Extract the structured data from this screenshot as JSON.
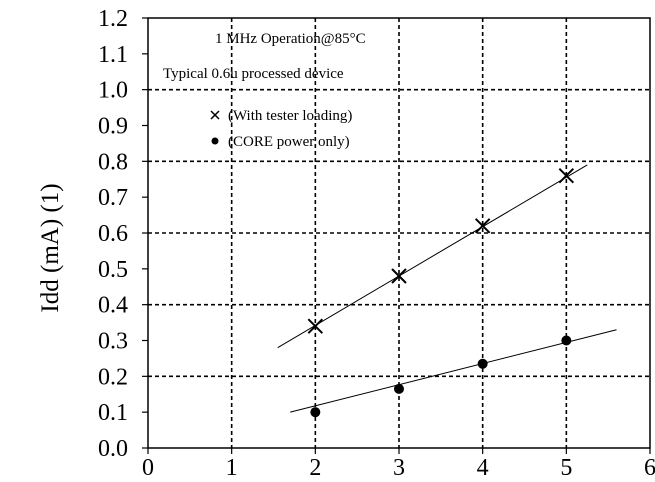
{
  "chart_data": {
    "type": "scatter",
    "title": "",
    "ylabel": "Idd (mA) (1)",
    "xlabel": "",
    "xlim": [
      0,
      6
    ],
    "ylim": [
      0.0,
      1.2
    ],
    "x_ticks": [
      "0",
      "1",
      "2",
      "3",
      "4",
      "5",
      "6"
    ],
    "y_ticks": [
      "0.0",
      "0.1",
      "0.2",
      "0.3",
      "0.4",
      "0.5",
      "0.6",
      "0.7",
      "0.8",
      "0.9",
      "1.0",
      "1.1",
      "1.2"
    ],
    "grid": true,
    "legend_position": "top-left",
    "annotations": [
      "1 MHz Operation@85°C",
      "Typical 0.6u processed device"
    ],
    "series": [
      {
        "name": "(With tester loading)",
        "marker": "x",
        "x": [
          2,
          3,
          4,
          5
        ],
        "y": [
          0.34,
          0.48,
          0.62,
          0.76
        ],
        "fit_x": [
          1.55,
          5.25
        ],
        "fit_y": [
          0.28,
          0.79
        ]
      },
      {
        "name": "(CORE power only)",
        "marker": "dot",
        "x": [
          2,
          3,
          4,
          5
        ],
        "y": [
          0.1,
          0.165,
          0.235,
          0.3
        ],
        "fit_x": [
          1.7,
          5.6
        ],
        "fit_y": [
          0.1,
          0.33
        ]
      }
    ],
    "colors": {
      "line": "#000000",
      "grid": "#000000",
      "background": "#ffffff"
    }
  }
}
